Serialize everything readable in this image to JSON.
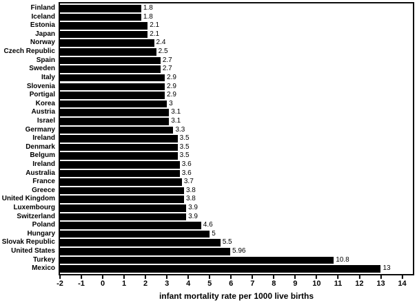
{
  "chart_data": {
    "type": "bar",
    "orientation": "horizontal",
    "categories": [
      "Finland",
      "Iceland",
      "Estonia",
      "Japan",
      "Norway",
      "Czech Republic",
      "Spain",
      "Sweden",
      "Italy",
      "Slovenia",
      "Portigal",
      "Korea",
      "Austria",
      "Israel",
      "Germany",
      "Ireland",
      "Denmark",
      "Belgum",
      "Ireland",
      "Australia",
      "France",
      "Greece",
      "United Kingdom",
      "Luxembourg",
      "Switzerland",
      "Poland",
      "Hungary",
      "Slovak Republic",
      "United States",
      "Turkey",
      "Mexico"
    ],
    "values": [
      1.8,
      1.8,
      2.1,
      2.1,
      2.4,
      2.5,
      2.7,
      2.7,
      2.9,
      2.9,
      2.9,
      3,
      3.1,
      3.1,
      3.3,
      3.5,
      3.5,
      3.5,
      3.6,
      3.6,
      3.7,
      3.8,
      3.8,
      3.9,
      3.9,
      4.6,
      5,
      5.5,
      5.96,
      10.8,
      13
    ],
    "value_labels": [
      "1.8",
      "1.8",
      "2.1",
      "2.1",
      "2.4",
      "2.5",
      "2.7",
      "2.7",
      "2.9",
      "2.9",
      "2.9",
      "3",
      "3.1",
      "3.1",
      "3.3",
      "3.5",
      "3.5",
      "3.5",
      "3.6",
      "3.6",
      "3.7",
      "3.8",
      "3.8",
      "3.9",
      "3.9",
      "4.6",
      "5",
      "5.5",
      "5.96",
      "10.8",
      "13"
    ],
    "xlabel": "infant mortality rate per 1000 live births",
    "xticks": [
      -2,
      -1,
      0,
      1,
      2,
      3,
      4,
      5,
      6,
      7,
      8,
      9,
      10,
      11,
      12,
      13,
      14
    ],
    "xlim": [
      -2,
      14.5
    ],
    "grid": "off",
    "legend": "none",
    "colors": {
      "bar": "#000000",
      "frame": "#0a0a0a",
      "text": "#000000",
      "background": "#ffffff"
    }
  }
}
